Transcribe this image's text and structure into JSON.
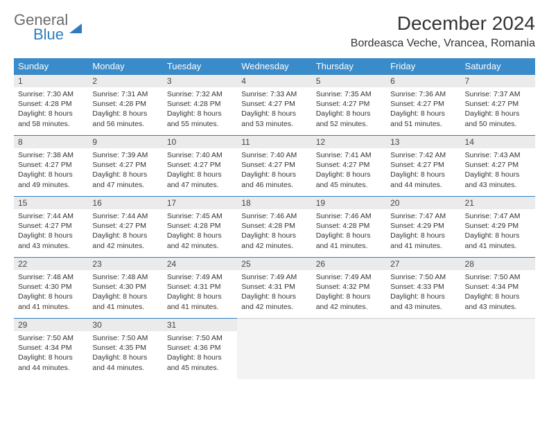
{
  "logo": {
    "general": "General",
    "blue": "Blue"
  },
  "header": {
    "title": "December 2024",
    "location": "Bordeasca Veche, Vrancea, Romania"
  },
  "colors": {
    "header_bg": "#3a8bc9",
    "header_text": "#ffffff",
    "daynum_bg": "#ebebeb",
    "daynum_border": "#2e7cc0",
    "empty_bg": "#f3f3f3",
    "text": "#333333",
    "logo_gray": "#6b6b6b",
    "logo_blue": "#2e7cc0"
  },
  "weekdays": [
    "Sunday",
    "Monday",
    "Tuesday",
    "Wednesday",
    "Thursday",
    "Friday",
    "Saturday"
  ],
  "weeks": [
    [
      {
        "n": "1",
        "sr": "Sunrise: 7:30 AM",
        "ss": "Sunset: 4:28 PM",
        "d1": "Daylight: 8 hours",
        "d2": "and 58 minutes."
      },
      {
        "n": "2",
        "sr": "Sunrise: 7:31 AM",
        "ss": "Sunset: 4:28 PM",
        "d1": "Daylight: 8 hours",
        "d2": "and 56 minutes."
      },
      {
        "n": "3",
        "sr": "Sunrise: 7:32 AM",
        "ss": "Sunset: 4:28 PM",
        "d1": "Daylight: 8 hours",
        "d2": "and 55 minutes."
      },
      {
        "n": "4",
        "sr": "Sunrise: 7:33 AM",
        "ss": "Sunset: 4:27 PM",
        "d1": "Daylight: 8 hours",
        "d2": "and 53 minutes."
      },
      {
        "n": "5",
        "sr": "Sunrise: 7:35 AM",
        "ss": "Sunset: 4:27 PM",
        "d1": "Daylight: 8 hours",
        "d2": "and 52 minutes."
      },
      {
        "n": "6",
        "sr": "Sunrise: 7:36 AM",
        "ss": "Sunset: 4:27 PM",
        "d1": "Daylight: 8 hours",
        "d2": "and 51 minutes."
      },
      {
        "n": "7",
        "sr": "Sunrise: 7:37 AM",
        "ss": "Sunset: 4:27 PM",
        "d1": "Daylight: 8 hours",
        "d2": "and 50 minutes."
      }
    ],
    [
      {
        "n": "8",
        "sr": "Sunrise: 7:38 AM",
        "ss": "Sunset: 4:27 PM",
        "d1": "Daylight: 8 hours",
        "d2": "and 49 minutes."
      },
      {
        "n": "9",
        "sr": "Sunrise: 7:39 AM",
        "ss": "Sunset: 4:27 PM",
        "d1": "Daylight: 8 hours",
        "d2": "and 47 minutes."
      },
      {
        "n": "10",
        "sr": "Sunrise: 7:40 AM",
        "ss": "Sunset: 4:27 PM",
        "d1": "Daylight: 8 hours",
        "d2": "and 47 minutes."
      },
      {
        "n": "11",
        "sr": "Sunrise: 7:40 AM",
        "ss": "Sunset: 4:27 PM",
        "d1": "Daylight: 8 hours",
        "d2": "and 46 minutes."
      },
      {
        "n": "12",
        "sr": "Sunrise: 7:41 AM",
        "ss": "Sunset: 4:27 PM",
        "d1": "Daylight: 8 hours",
        "d2": "and 45 minutes."
      },
      {
        "n": "13",
        "sr": "Sunrise: 7:42 AM",
        "ss": "Sunset: 4:27 PM",
        "d1": "Daylight: 8 hours",
        "d2": "and 44 minutes."
      },
      {
        "n": "14",
        "sr": "Sunrise: 7:43 AM",
        "ss": "Sunset: 4:27 PM",
        "d1": "Daylight: 8 hours",
        "d2": "and 43 minutes."
      }
    ],
    [
      {
        "n": "15",
        "sr": "Sunrise: 7:44 AM",
        "ss": "Sunset: 4:27 PM",
        "d1": "Daylight: 8 hours",
        "d2": "and 43 minutes."
      },
      {
        "n": "16",
        "sr": "Sunrise: 7:44 AM",
        "ss": "Sunset: 4:27 PM",
        "d1": "Daylight: 8 hours",
        "d2": "and 42 minutes."
      },
      {
        "n": "17",
        "sr": "Sunrise: 7:45 AM",
        "ss": "Sunset: 4:28 PM",
        "d1": "Daylight: 8 hours",
        "d2": "and 42 minutes."
      },
      {
        "n": "18",
        "sr": "Sunrise: 7:46 AM",
        "ss": "Sunset: 4:28 PM",
        "d1": "Daylight: 8 hours",
        "d2": "and 42 minutes."
      },
      {
        "n": "19",
        "sr": "Sunrise: 7:46 AM",
        "ss": "Sunset: 4:28 PM",
        "d1": "Daylight: 8 hours",
        "d2": "and 41 minutes."
      },
      {
        "n": "20",
        "sr": "Sunrise: 7:47 AM",
        "ss": "Sunset: 4:29 PM",
        "d1": "Daylight: 8 hours",
        "d2": "and 41 minutes."
      },
      {
        "n": "21",
        "sr": "Sunrise: 7:47 AM",
        "ss": "Sunset: 4:29 PM",
        "d1": "Daylight: 8 hours",
        "d2": "and 41 minutes."
      }
    ],
    [
      {
        "n": "22",
        "sr": "Sunrise: 7:48 AM",
        "ss": "Sunset: 4:30 PM",
        "d1": "Daylight: 8 hours",
        "d2": "and 41 minutes."
      },
      {
        "n": "23",
        "sr": "Sunrise: 7:48 AM",
        "ss": "Sunset: 4:30 PM",
        "d1": "Daylight: 8 hours",
        "d2": "and 41 minutes."
      },
      {
        "n": "24",
        "sr": "Sunrise: 7:49 AM",
        "ss": "Sunset: 4:31 PM",
        "d1": "Daylight: 8 hours",
        "d2": "and 41 minutes."
      },
      {
        "n": "25",
        "sr": "Sunrise: 7:49 AM",
        "ss": "Sunset: 4:31 PM",
        "d1": "Daylight: 8 hours",
        "d2": "and 42 minutes."
      },
      {
        "n": "26",
        "sr": "Sunrise: 7:49 AM",
        "ss": "Sunset: 4:32 PM",
        "d1": "Daylight: 8 hours",
        "d2": "and 42 minutes."
      },
      {
        "n": "27",
        "sr": "Sunrise: 7:50 AM",
        "ss": "Sunset: 4:33 PM",
        "d1": "Daylight: 8 hours",
        "d2": "and 43 minutes."
      },
      {
        "n": "28",
        "sr": "Sunrise: 7:50 AM",
        "ss": "Sunset: 4:34 PM",
        "d1": "Daylight: 8 hours",
        "d2": "and 43 minutes."
      }
    ],
    [
      {
        "n": "29",
        "sr": "Sunrise: 7:50 AM",
        "ss": "Sunset: 4:34 PM",
        "d1": "Daylight: 8 hours",
        "d2": "and 44 minutes."
      },
      {
        "n": "30",
        "sr": "Sunrise: 7:50 AM",
        "ss": "Sunset: 4:35 PM",
        "d1": "Daylight: 8 hours",
        "d2": "and 44 minutes."
      },
      {
        "n": "31",
        "sr": "Sunrise: 7:50 AM",
        "ss": "Sunset: 4:36 PM",
        "d1": "Daylight: 8 hours",
        "d2": "and 45 minutes."
      },
      {
        "empty": true
      },
      {
        "empty": true
      },
      {
        "empty": true
      },
      {
        "empty": true
      }
    ]
  ]
}
